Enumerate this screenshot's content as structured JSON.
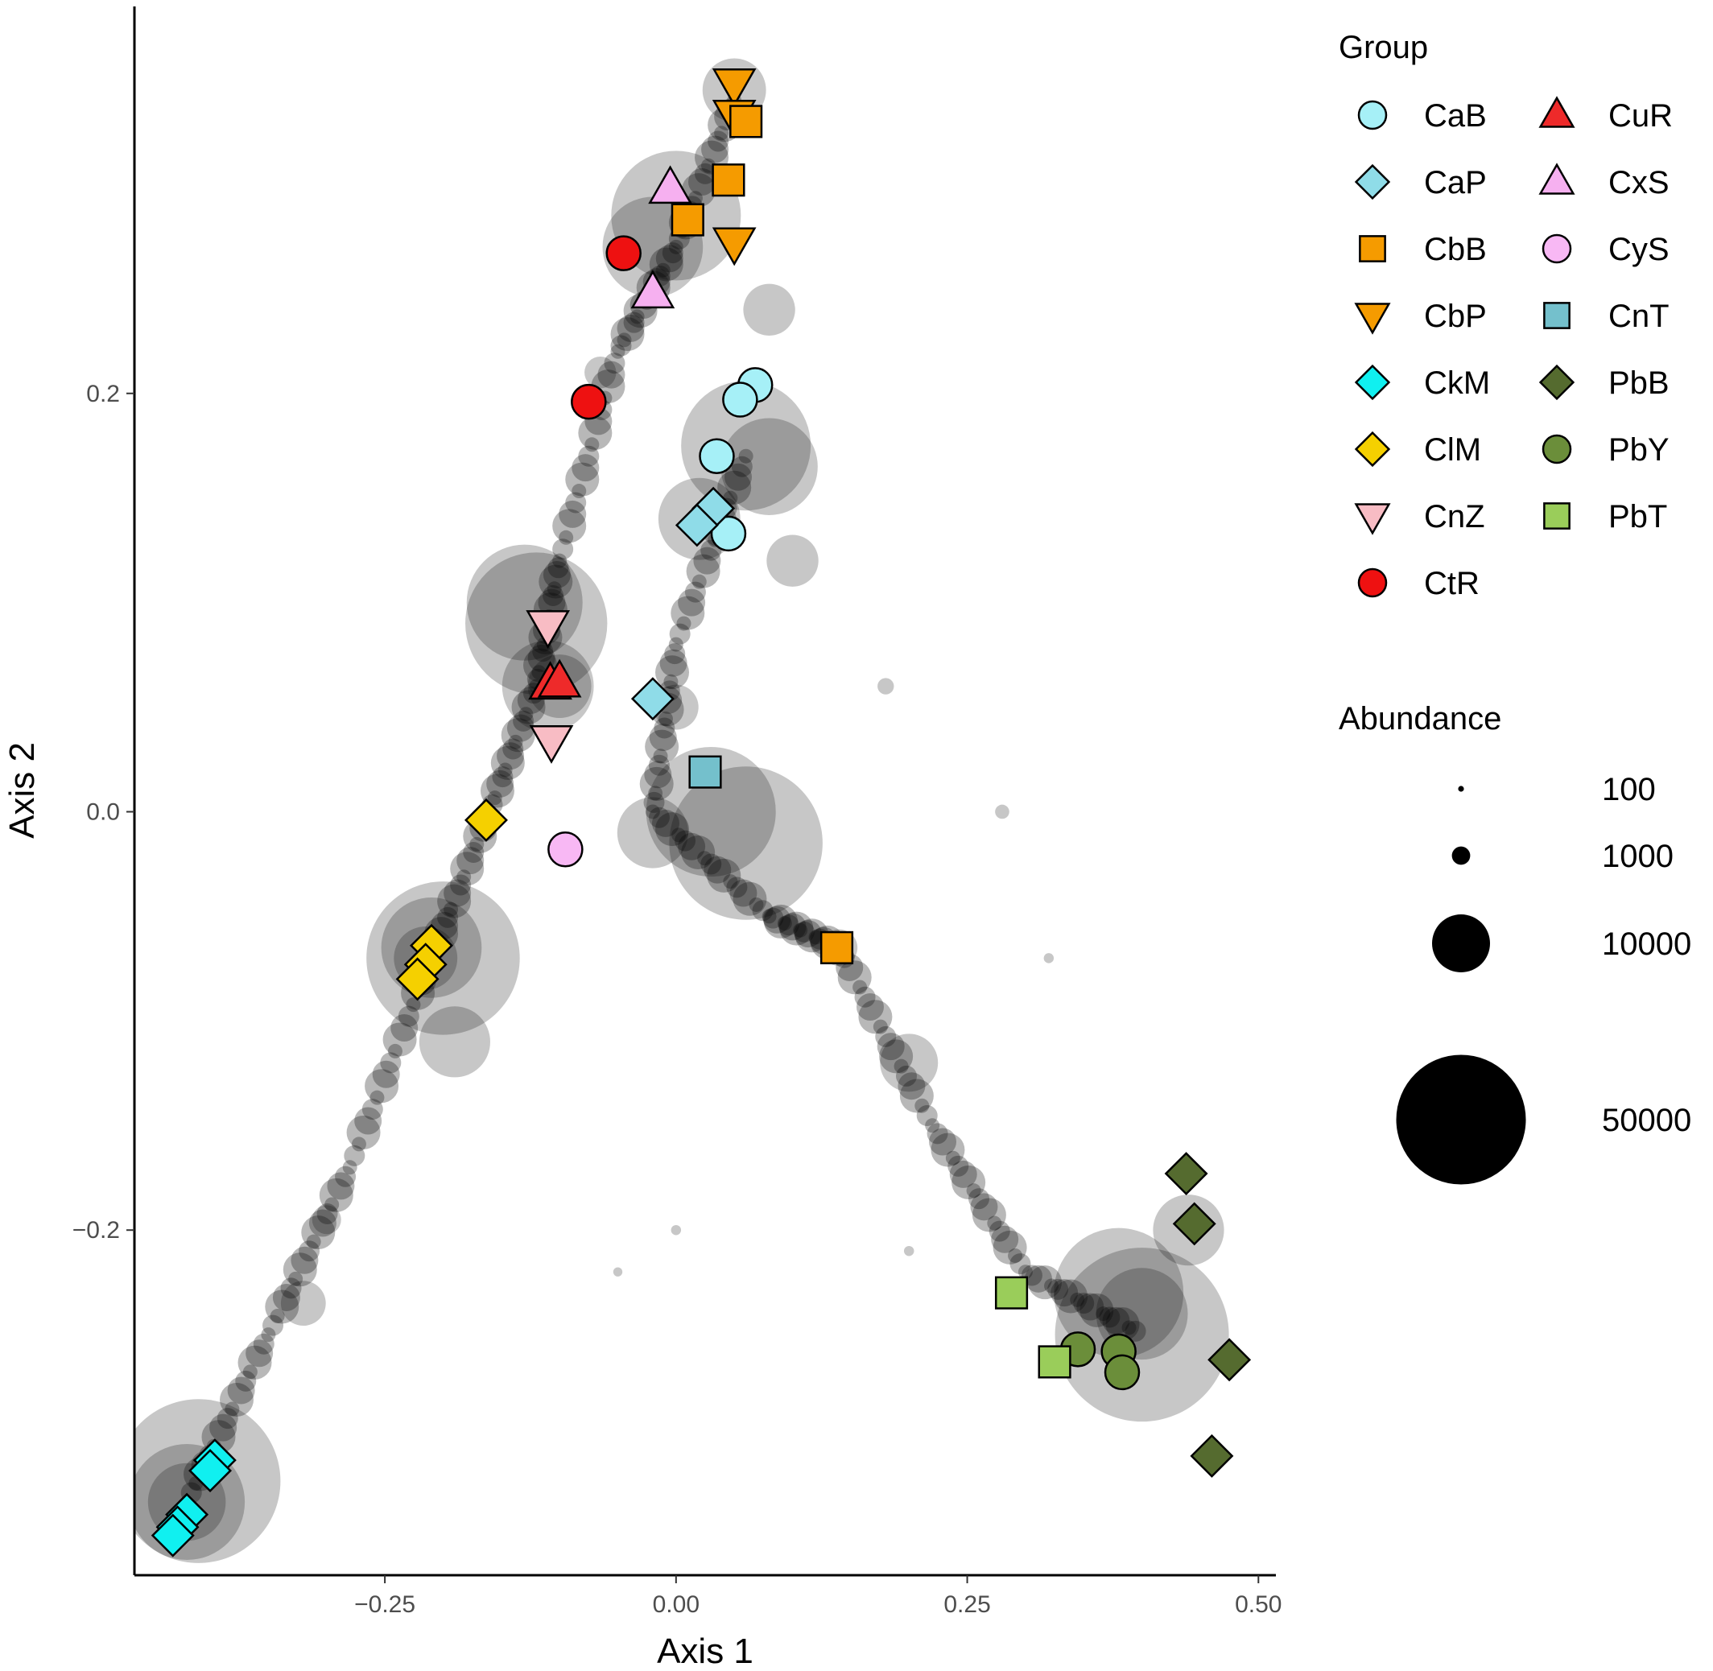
{
  "chart_data": {
    "type": "scatter",
    "xlabel": "Axis 1",
    "ylabel": "Axis 2",
    "xlim": [
      -0.465,
      0.515
    ],
    "ylim": [
      -0.365,
      0.385
    ],
    "x_ticks": [
      -0.25,
      0.0,
      0.25,
      0.5
    ],
    "x_tick_labels": [
      "−0.25",
      "0.00",
      "0.25",
      "0.50"
    ],
    "y_ticks": [
      -0.2,
      0.0,
      0.2
    ],
    "y_tick_labels": [
      "−0.2",
      "0.0",
      "0.2"
    ],
    "grid": false,
    "legend_position": "right",
    "group_legend_title": "Group",
    "size_legend_title": "Abundance",
    "size_legend": [
      {
        "label": "100",
        "value": 100
      },
      {
        "label": "1000",
        "value": 1000
      },
      {
        "label": "10000",
        "value": 10000
      },
      {
        "label": "50000",
        "value": 50000
      }
    ],
    "groups": [
      {
        "name": "CaB",
        "shape": "circle",
        "color": "#a6f0f7"
      },
      {
        "name": "CaP",
        "shape": "diamond",
        "color": "#8fdce8"
      },
      {
        "name": "CbB",
        "shape": "square",
        "color": "#f59b00"
      },
      {
        "name": "CbP",
        "shape": "triangle-down",
        "color": "#f59b00"
      },
      {
        "name": "CkM",
        "shape": "diamond",
        "color": "#10f0f0"
      },
      {
        "name": "ClM",
        "shape": "diamond",
        "color": "#f5d000"
      },
      {
        "name": "CnZ",
        "shape": "triangle-down",
        "color": "#f8bcc4"
      },
      {
        "name": "CtR",
        "shape": "circle",
        "color": "#ee1111"
      },
      {
        "name": "CuR",
        "shape": "triangle-up",
        "color": "#ee2a2a"
      },
      {
        "name": "CxS",
        "shape": "triangle-up",
        "color": "#f6b0f0"
      },
      {
        "name": "CyS",
        "shape": "circle",
        "color": "#f8b8f4"
      },
      {
        "name": "CnT",
        "shape": "square",
        "color": "#74c0cc"
      },
      {
        "name": "PbB",
        "shape": "diamond",
        "color": "#556b2f"
      },
      {
        "name": "PbY",
        "shape": "circle",
        "color": "#6b8e3a"
      },
      {
        "name": "PbT",
        "shape": "square",
        "color": "#9acd5a"
      }
    ],
    "samples": [
      {
        "group": "CbP",
        "x": 0.05,
        "y": 0.348
      },
      {
        "group": "CbP",
        "x": 0.05,
        "y": 0.333
      },
      {
        "group": "CbB",
        "x": 0.06,
        "y": 0.33
      },
      {
        "group": "CbB",
        "x": 0.045,
        "y": 0.302
      },
      {
        "group": "CbB",
        "x": 0.01,
        "y": 0.283
      },
      {
        "group": "CbP",
        "x": 0.05,
        "y": 0.272
      },
      {
        "group": "CxS",
        "x": -0.005,
        "y": 0.298
      },
      {
        "group": "CxS",
        "x": -0.02,
        "y": 0.248
      },
      {
        "group": "CtR",
        "x": -0.045,
        "y": 0.267
      },
      {
        "group": "CtR",
        "x": -0.075,
        "y": 0.196
      },
      {
        "group": "CaB",
        "x": 0.068,
        "y": 0.204
      },
      {
        "group": "CaB",
        "x": 0.055,
        "y": 0.197
      },
      {
        "group": "CaB",
        "x": 0.035,
        "y": 0.17
      },
      {
        "group": "CaB",
        "x": 0.045,
        "y": 0.133
      },
      {
        "group": "CaP",
        "x": 0.032,
        "y": 0.145
      },
      {
        "group": "CaP",
        "x": 0.018,
        "y": 0.137
      },
      {
        "group": "CaP",
        "x": -0.02,
        "y": 0.054
      },
      {
        "group": "CnZ",
        "x": -0.11,
        "y": 0.089
      },
      {
        "group": "CnZ",
        "x": -0.107,
        "y": 0.034
      },
      {
        "group": "CuR",
        "x": -0.108,
        "y": 0.061
      },
      {
        "group": "CuR",
        "x": -0.1,
        "y": 0.062
      },
      {
        "group": "CnT",
        "x": 0.025,
        "y": 0.019
      },
      {
        "group": "CyS",
        "x": -0.095,
        "y": -0.018
      },
      {
        "group": "ClM",
        "x": -0.163,
        "y": -0.004
      },
      {
        "group": "ClM",
        "x": -0.21,
        "y": -0.064
      },
      {
        "group": "ClM",
        "x": -0.215,
        "y": -0.073
      },
      {
        "group": "ClM",
        "x": -0.222,
        "y": -0.08
      },
      {
        "group": "CbB",
        "x": 0.138,
        "y": -0.065
      },
      {
        "group": "PbB",
        "x": 0.438,
        "y": -0.173
      },
      {
        "group": "PbB",
        "x": 0.445,
        "y": -0.197
      },
      {
        "group": "PbT",
        "x": 0.288,
        "y": -0.23
      },
      {
        "group": "PbY",
        "x": 0.345,
        "y": -0.257
      },
      {
        "group": "PbY",
        "x": 0.38,
        "y": -0.258
      },
      {
        "group": "PbY",
        "x": 0.383,
        "y": -0.268
      },
      {
        "group": "PbT",
        "x": 0.325,
        "y": -0.263
      },
      {
        "group": "PbB",
        "x": 0.475,
        "y": -0.262
      },
      {
        "group": "PbB",
        "x": 0.46,
        "y": -0.308
      },
      {
        "group": "CkM",
        "x": -0.396,
        "y": -0.31
      },
      {
        "group": "CkM",
        "x": -0.4,
        "y": -0.315
      },
      {
        "group": "CkM",
        "x": -0.42,
        "y": -0.336
      },
      {
        "group": "CkM",
        "x": -0.428,
        "y": -0.342
      },
      {
        "group": "CkM",
        "x": -0.432,
        "y": -0.346
      }
    ],
    "otu_bubbles": [
      {
        "x": 0.05,
        "y": 0.345,
        "abundance": 12000
      },
      {
        "x": 0.0,
        "y": 0.285,
        "abundance": 50000
      },
      {
        "x": -0.02,
        "y": 0.27,
        "abundance": 30000
      },
      {
        "x": 0.08,
        "y": 0.24,
        "abundance": 8000
      },
      {
        "x": -0.065,
        "y": 0.21,
        "abundance": 3000
      },
      {
        "x": 0.06,
        "y": 0.175,
        "abundance": 50000
      },
      {
        "x": 0.08,
        "y": 0.165,
        "abundance": 28000
      },
      {
        "x": 0.02,
        "y": 0.14,
        "abundance": 20000
      },
      {
        "x": 0.1,
        "y": 0.12,
        "abundance": 8000
      },
      {
        "x": -0.13,
        "y": 0.1,
        "abundance": 40000
      },
      {
        "x": -0.12,
        "y": 0.09,
        "abundance": 60000
      },
      {
        "x": -0.11,
        "y": 0.06,
        "abundance": 25000
      },
      {
        "x": -0.1,
        "y": 0.06,
        "abundance": 12000
      },
      {
        "x": 0.0,
        "y": 0.05,
        "abundance": 6000
      },
      {
        "x": 0.03,
        "y": 0.0,
        "abundance": 50000
      },
      {
        "x": 0.06,
        "y": -0.015,
        "abundance": 70000
      },
      {
        "x": -0.02,
        "y": -0.01,
        "abundance": 15000
      },
      {
        "x": -0.2,
        "y": -0.07,
        "abundance": 70000
      },
      {
        "x": -0.21,
        "y": -0.065,
        "abundance": 30000
      },
      {
        "x": -0.215,
        "y": -0.07,
        "abundance": 12000
      },
      {
        "x": -0.19,
        "y": -0.11,
        "abundance": 15000
      },
      {
        "x": 0.14,
        "y": -0.065,
        "abundance": 4000
      },
      {
        "x": 0.2,
        "y": -0.12,
        "abundance": 10000
      },
      {
        "x": -0.3,
        "y": -0.195,
        "abundance": 2500
      },
      {
        "x": -0.32,
        "y": -0.235,
        "abundance": 6000
      },
      {
        "x": -0.41,
        "y": -0.32,
        "abundance": 80000
      },
      {
        "x": -0.42,
        "y": -0.33,
        "abundance": 40000
      },
      {
        "x": -0.42,
        "y": -0.33,
        "abundance": 18000
      },
      {
        "x": 0.4,
        "y": -0.25,
        "abundance": 90000
      },
      {
        "x": 0.38,
        "y": -0.23,
        "abundance": 50000
      },
      {
        "x": 0.4,
        "y": -0.24,
        "abundance": 25000
      },
      {
        "x": 0.44,
        "y": -0.2,
        "abundance": 15000
      },
      {
        "x": 0.28,
        "y": 0.0,
        "abundance": 600
      },
      {
        "x": 0.2,
        "y": -0.21,
        "abundance": 300
      },
      {
        "x": 0.0,
        "y": -0.2,
        "abundance": 300
      },
      {
        "x": -0.05,
        "y": -0.22,
        "abundance": 250
      },
      {
        "x": 0.32,
        "y": -0.07,
        "abundance": 300
      },
      {
        "x": 0.18,
        "y": 0.06,
        "abundance": 800
      }
    ]
  }
}
